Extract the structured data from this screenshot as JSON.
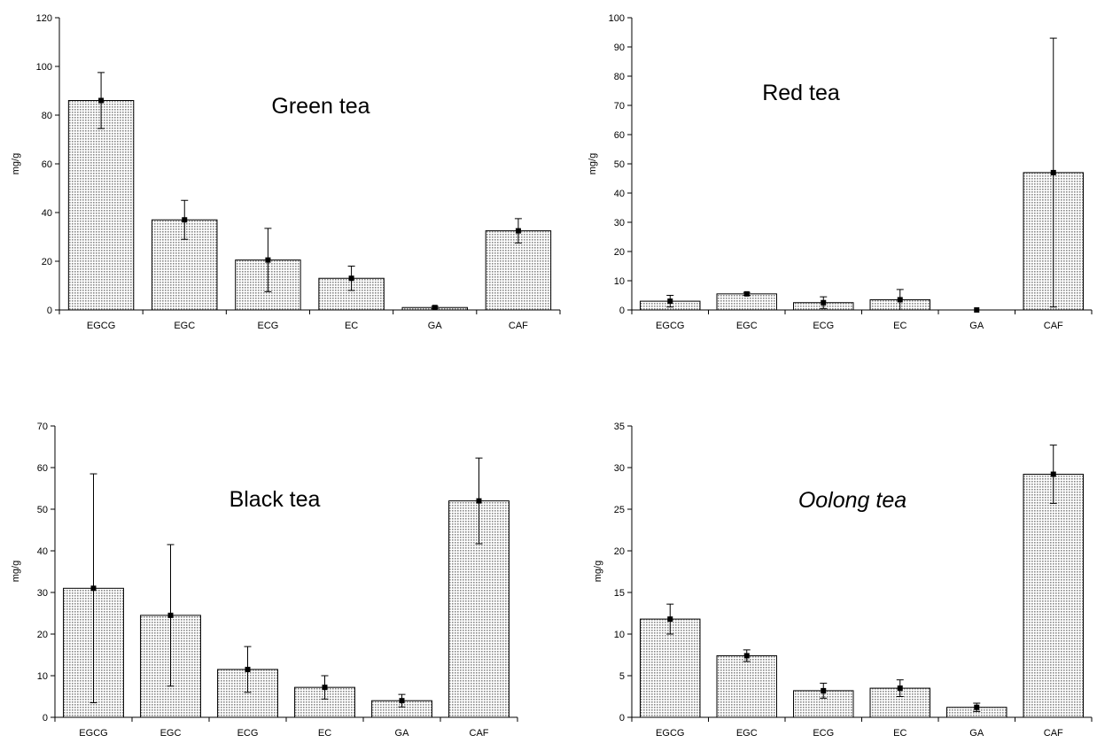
{
  "chart_data": [
    {
      "type": "bar",
      "title": "Green tea",
      "ylabel": "mg/g",
      "categories": [
        "EGCG",
        "EGC",
        "ECG",
        "EC",
        "GA",
        "CAF"
      ],
      "values": [
        86,
        37,
        20.5,
        13,
        1,
        32.5
      ],
      "errors": [
        11.5,
        8,
        13,
        5,
        0.5,
        5
      ],
      "ylim": [
        0,
        120
      ],
      "yticks": [
        "0",
        "20",
        "40",
        "60",
        "80",
        "100",
        "120"
      ],
      "bar_color": "#c8c8c8",
      "title_style": "normal"
    },
    {
      "type": "bar",
      "title": "Red  tea",
      "ylabel": "mg/g",
      "categories": [
        "EGCG",
        "EGC",
        "ECG",
        "EC",
        "GA",
        "CAF"
      ],
      "values": [
        3,
        5.5,
        2.5,
        3.5,
        0,
        47
      ],
      "errors": [
        2,
        0.5,
        2,
        3.5,
        0,
        46
      ],
      "ylim": [
        0,
        100
      ],
      "yticks": [
        "0",
        "10",
        "20",
        "30",
        "40",
        "50",
        "60",
        "70",
        "80",
        "90",
        "100"
      ],
      "bar_color": "#dcdcdc",
      "title_style": "normal"
    },
    {
      "type": "bar",
      "title": "Black tea",
      "ylabel": "mg/g",
      "categories": [
        "EGCG",
        "EGC",
        "ECG",
        "EC",
        "GA",
        "CAF"
      ],
      "values": [
        31,
        24.5,
        11.5,
        7.2,
        4,
        52
      ],
      "errors": [
        27.5,
        17,
        5.5,
        2.8,
        1.5,
        10.3
      ],
      "ylim": [
        0,
        70
      ],
      "yticks": [
        "0",
        "10",
        "20",
        "30",
        "40",
        "50",
        "60",
        "70"
      ],
      "bar_color": "#cccccc",
      "title_style": "normal"
    },
    {
      "type": "bar",
      "title": "Oolong tea",
      "ylabel": "mg/g",
      "categories": [
        "EGCG",
        "EGC",
        "ECG",
        "EC",
        "GA",
        "CAF"
      ],
      "values": [
        11.8,
        7.4,
        3.2,
        3.5,
        1.2,
        29.2
      ],
      "errors": [
        1.8,
        0.7,
        0.9,
        1,
        0.5,
        3.5
      ],
      "ylim": [
        0,
        35
      ],
      "yticks": [
        "0",
        "5",
        "10",
        "15",
        "20",
        "25",
        "30",
        "35"
      ],
      "bar_color": "#d6d6d6",
      "title_style": "italic"
    }
  ]
}
